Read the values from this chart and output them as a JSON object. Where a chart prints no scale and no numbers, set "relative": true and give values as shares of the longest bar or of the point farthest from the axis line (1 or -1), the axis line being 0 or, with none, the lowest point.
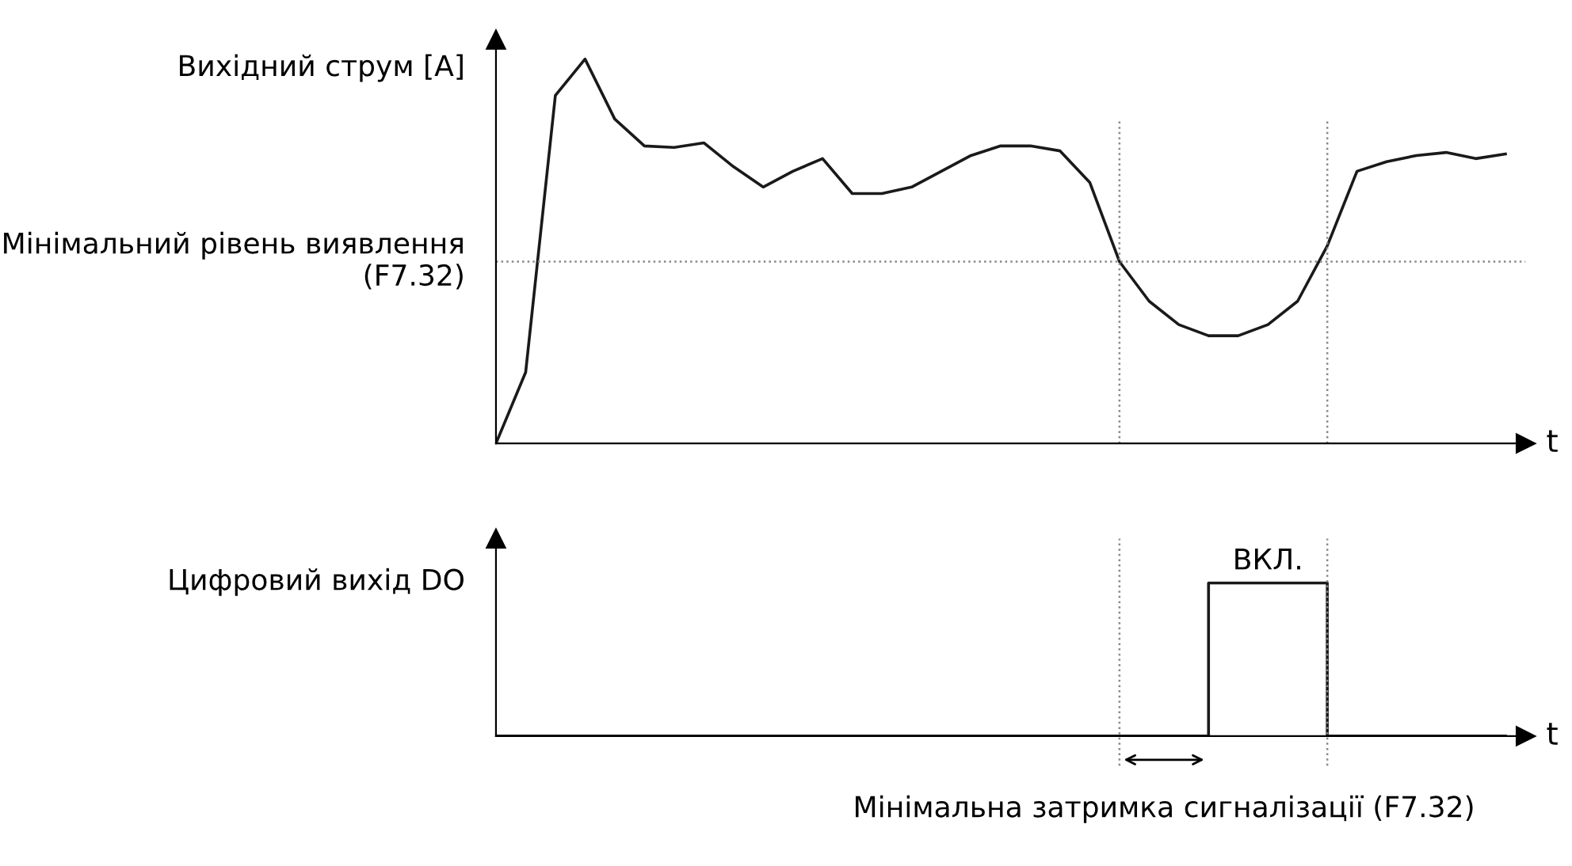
{
  "chart_data": [
    {
      "type": "line",
      "relative": true,
      "ylabel": "Вихідний струм [A]",
      "xlabel": "t",
      "color": "#1a1a1a",
      "categories": [
        null,
        null,
        null,
        null,
        null,
        null,
        null,
        null,
        null,
        null,
        null,
        null,
        null,
        null,
        null,
        null,
        null,
        null,
        null,
        null,
        null,
        null,
        null,
        null,
        null,
        null,
        null,
        null,
        null,
        null,
        null,
        null,
        null,
        null,
        null
      ],
      "values": [
        0,
        0.185,
        0.905,
        1,
        0.844,
        0.774,
        0.77,
        0.782,
        0.72,
        0.667,
        0.708,
        0.741,
        0.65,
        0.65,
        0.667,
        0.708,
        0.749,
        0.774,
        0.774,
        0.761,
        0.679,
        0.473,
        0.37,
        0.309,
        0.28,
        0.28,
        0.309,
        0.37,
        0.514,
        0.708,
        0.733,
        0.749,
        0.757,
        0.741,
        0.753
      ],
      "ref_lines": [
        {
          "axis": "y",
          "value": 0.473,
          "label": "Мінімальний рівень виявлення (F7.32)",
          "line_style": "dotted",
          "color": "#888888"
        }
      ]
    },
    {
      "type": "step",
      "relative": true,
      "ylabel": "Цифровий вихід DO",
      "xlabel": "t",
      "color": "#1a1a1a",
      "categories": [
        null,
        null,
        null,
        null,
        null,
        null,
        null,
        null,
        null,
        null,
        null,
        null,
        null,
        null,
        null,
        null,
        null,
        null,
        null,
        null,
        null,
        null,
        null,
        null,
        null,
        null,
        null,
        null,
        null,
        null,
        null,
        null,
        null,
        null,
        null
      ],
      "values": [
        0,
        0,
        0,
        0,
        0,
        0,
        0,
        0,
        0,
        0,
        0,
        0,
        0,
        0,
        0,
        0,
        0,
        0,
        0,
        0,
        0,
        0,
        0,
        0,
        1,
        1,
        1,
        1,
        0,
        0,
        0,
        0,
        0,
        0,
        0
      ],
      "annotations": [
        {
          "text": "ВКЛ.",
          "y": 1
        },
        "Мінімальна затримка сигналізації (F7.32)"
      ]
    }
  ]
}
